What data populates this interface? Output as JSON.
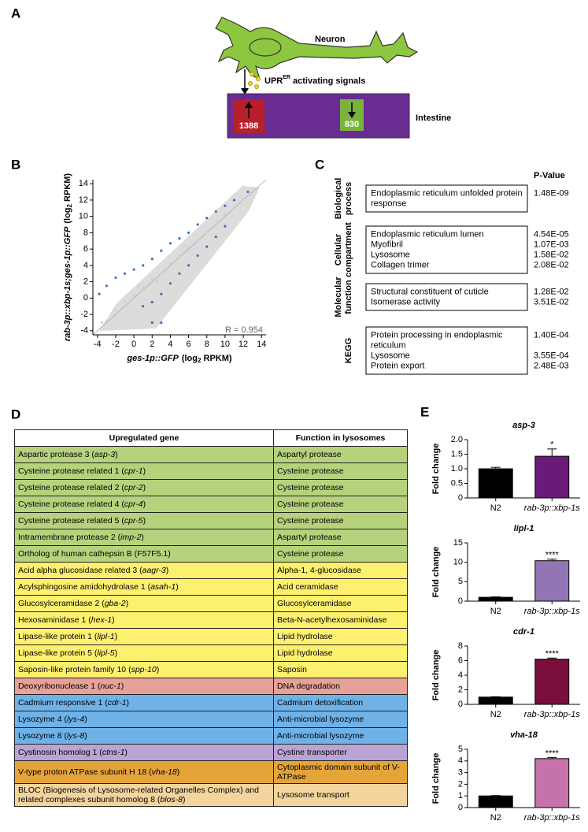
{
  "panel_labels": [
    "A",
    "B",
    "C",
    "D",
    "E"
  ],
  "diagram": {
    "neuron_label": "Neuron",
    "signal_label": [
      "UPR",
      "ER",
      " activating signals"
    ],
    "up_count": 1388,
    "down_count": 830,
    "intestine_label": "Intestine"
  },
  "chart_data": [
    {
      "type": "scatter",
      "xlabel": {
        "gene": "ges-1p::GFP",
        "unit": [
          "(log",
          "2",
          " RPKM)"
        ]
      },
      "ylabel": {
        "gene": "rab-3p::xbp-1s;ges-1p::GFP",
        "unit": [
          "(log",
          "2",
          " RPKM)"
        ]
      },
      "annotation": "R = 0.954",
      "xlim": [
        -4.5,
        14.5
      ],
      "ylim": [
        -4.5,
        14.5
      ],
      "xticks": [
        -4,
        -2,
        0,
        2,
        4,
        6,
        8,
        10,
        12,
        14
      ],
      "yticks": [
        -4,
        -2,
        0,
        2,
        4,
        6,
        8,
        10,
        12,
        14
      ],
      "series": [
        {
          "color": "#cfcfcf",
          "x": [
            -3.5,
            -2,
            -1,
            0,
            1,
            2,
            3,
            4,
            5,
            6,
            7,
            8,
            9,
            10,
            11,
            12,
            -3,
            0.5,
            5.5,
            2.5
          ],
          "values": [
            -3,
            -1.5,
            -0.5,
            0.3,
            1.2,
            2.4,
            3,
            4.2,
            5.1,
            6.2,
            7,
            8.1,
            9,
            10.2,
            11,
            12.1,
            -2.8,
            1.5,
            6.5,
            2
          ]
        },
        {
          "color": "#3b6fc4",
          "x": [
            -3.8,
            -3,
            -2,
            -1,
            0,
            1,
            2,
            3,
            4,
            5,
            6,
            7,
            8,
            9,
            10,
            11,
            12.5,
            1,
            2,
            3,
            4,
            5,
            6,
            7,
            8,
            9,
            10,
            2,
            3
          ],
          "values": [
            0.5,
            1.5,
            2.5,
            3,
            3.5,
            4,
            4.8,
            5.8,
            6.7,
            7.3,
            8,
            9,
            9.8,
            10.6,
            11.3,
            12,
            13,
            -1,
            -0.5,
            0.5,
            1.8,
            3,
            4,
            5.2,
            6.3,
            7.5,
            8.8,
            -3,
            -3
          ]
        }
      ]
    },
    {
      "type": "bar",
      "title": "asp-3",
      "ylabel": "Fold change",
      "categories": [
        "N2",
        "rab-3p::xbp-1s"
      ],
      "values": [
        1.0,
        1.43
      ],
      "errors": [
        0.05,
        0.25
      ],
      "colors": [
        "#000000",
        "#6a1b7a"
      ],
      "significance": [
        null,
        "*"
      ],
      "ylim": [
        0,
        2
      ],
      "yticks": [
        0,
        0.5,
        {
          "value": 1,
          "label": "1.0"
        },
        1.5,
        {
          "value": 2,
          "label": "2.0"
        }
      ]
    },
    {
      "type": "bar",
      "title": "lipl-1",
      "ylabel": "Fold change",
      "categories": [
        "N2",
        "rab-3p::xbp-1s"
      ],
      "values": [
        1.0,
        10.4
      ],
      "errors": [
        0.1,
        0.4
      ],
      "colors": [
        "#000000",
        "#9275b4"
      ],
      "significance": [
        null,
        "****"
      ],
      "ylim": [
        0,
        15
      ],
      "yticks": [
        0,
        5,
        10,
        15
      ]
    },
    {
      "type": "bar",
      "title": "cdr-1",
      "ylabel": "Fold change",
      "categories": [
        "N2",
        "rab-3p::xbp-1s"
      ],
      "values": [
        1.0,
        6.2
      ],
      "errors": [
        0.05,
        0.15
      ],
      "colors": [
        "#000000",
        "#7a0f3c"
      ],
      "significance": [
        null,
        "****"
      ],
      "ylim": [
        0,
        8
      ],
      "yticks": [
        0,
        2,
        4,
        6,
        8
      ]
    },
    {
      "type": "bar",
      "title": "vha-18",
      "ylabel": "Fold change",
      "categories": [
        "N2",
        "rab-3p::xbp-1s"
      ],
      "values": [
        1.0,
        4.2
      ],
      "errors": [
        0.03,
        0.1
      ],
      "colors": [
        "#000000",
        "#c672ab"
      ],
      "significance": [
        null,
        "****"
      ],
      "ylim": [
        0,
        5
      ],
      "yticks": [
        0,
        1,
        2,
        3,
        4,
        5
      ]
    }
  ],
  "go_table": {
    "header": "P-Value",
    "groups": [
      {
        "label": [
          "Biological",
          "process"
        ],
        "terms": [
          {
            "term": [
              "Endoplasmic reticulum unfolded protein",
              "response"
            ],
            "p": "1.48E-09"
          }
        ]
      },
      {
        "label": [
          "Cellular",
          "compartment"
        ],
        "terms": [
          {
            "term": [
              "Endoplasmic reticulum lumen"
            ],
            "p": "4.54E-05"
          },
          {
            "term": [
              "Myofibril"
            ],
            "p": "1.07E-03"
          },
          {
            "term": [
              "Lysosome"
            ],
            "p": "1.58E-02"
          },
          {
            "term": [
              "Collagen trimer"
            ],
            "p": "2.08E-02"
          }
        ]
      },
      {
        "label": [
          "Molecular",
          "function"
        ],
        "terms": [
          {
            "term": [
              "Structural constituent of cuticle"
            ],
            "p": "1.28E-02"
          },
          {
            "term": [
              "Isomerase activity"
            ],
            "p": "3.51E-02"
          }
        ]
      },
      {
        "label": [
          "KEGG"
        ],
        "terms": [
          {
            "term": [
              "Protein processing in endoplasmic",
              "reticulum"
            ],
            "p": "1.40E-04"
          },
          {
            "term": [
              "Lysosome"
            ],
            "p": "3.55E-04"
          },
          {
            "term": [
              "Protein export"
            ],
            "p": "2.48E-03"
          }
        ]
      }
    ]
  },
  "gene_table": {
    "header": [
      "Upregulated gene",
      "Function in lysosomes"
    ],
    "rows": [
      {
        "gene": [
          "Aspartic protease 3 (",
          "asp-3",
          ")"
        ],
        "function": "Aspartyl protease",
        "color": "#b7d27c"
      },
      {
        "gene": [
          "Cysteine protease related 1 (",
          "cpr-1",
          ")"
        ],
        "function": "Cysteine protease",
        "color": "#b7d27c"
      },
      {
        "gene": [
          "Cysteine protease related 2 (",
          "cpr-2",
          ")"
        ],
        "function": "Cysteine protease",
        "color": "#b7d27c"
      },
      {
        "gene": [
          "Cysteine protease related 4 (",
          "cpr-4",
          ")"
        ],
        "function": "Cysteine protease",
        "color": "#b7d27c"
      },
      {
        "gene": [
          "Cysteine protease related 5 (",
          "cpr-5",
          ")"
        ],
        "function": "Cysteine protease",
        "color": "#b7d27c"
      },
      {
        "gene": [
          "Intramembrane protease 2 (",
          "imp-2",
          ")"
        ],
        "function": "Aspartyl protease",
        "color": "#b7d27c"
      },
      {
        "gene": [
          "Ortholog of human cathepsin B (F57F5.1)"
        ],
        "function": "Cysteine protease",
        "color": "#b7d27c"
      },
      {
        "gene": [
          "Acid alpha glucosidase related 3 (",
          "aagr-3",
          ")"
        ],
        "function": "Alpha-1, 4-glucosidase",
        "color": "#fdf06e"
      },
      {
        "gene": [
          "Acylsphingosine amidohydrolase 1 (",
          "asah-1",
          ")"
        ],
        "function": "Acid ceramidase",
        "color": "#fdf06e"
      },
      {
        "gene": [
          "Glucosylceramidase 2 (",
          "gba-2",
          ")"
        ],
        "function": "Glucosylceramidase",
        "color": "#fdf06e"
      },
      {
        "gene": [
          "Hexosaminidase 1 (",
          "hex-1",
          ")"
        ],
        "function": "Beta-N-acetylhexosaminidase",
        "color": "#fdf06e"
      },
      {
        "gene": [
          "Lipase-like protein 1 (",
          "lipl-1",
          ")"
        ],
        "function": "Lipid hydrolase",
        "color": "#fdf06e"
      },
      {
        "gene": [
          "Lipase-like protein 5 (",
          "lipl-5",
          ")"
        ],
        "function": "Lipid hydrolase",
        "color": "#fdf06e"
      },
      {
        "gene": [
          "Saposin-like protein family 10 (",
          "spp-10",
          ")"
        ],
        "function": "Saposin",
        "color": "#fdf06e"
      },
      {
        "gene": [
          "Deoxyribonuclease 1 (",
          "nuc-1",
          ")"
        ],
        "function": "DNA degradation",
        "color": "#e6a298"
      },
      {
        "gene": [
          "Cadmium responsive 1 (",
          "cdr-1",
          ")"
        ],
        "function": "Cadmium detoxification",
        "color": "#6eb2e8"
      },
      {
        "gene": [
          "Lysozyme 4 (",
          "lys-4",
          ")"
        ],
        "function": "Anti-microbial lysozyme",
        "color": "#6eb2e8"
      },
      {
        "gene": [
          "Lysozyme 8 (",
          "lys-8",
          ")"
        ],
        "function": "Anti-microbial lysozyme",
        "color": "#6eb2e8"
      },
      {
        "gene": [
          "Cystinosin homolog 1 (",
          "ctns-1",
          ")"
        ],
        "function": "Cystine transporter",
        "color": "#b9a4d4"
      },
      {
        "gene": [
          "V-type proton ATPase subunit H 18 (",
          "vha-18",
          ")"
        ],
        "function": "Cytoplasmic domain subunit of V-ATPase",
        "color": "#e5a43a"
      },
      {
        "gene": [
          "BLOC (Biogenesis of Lysosome-related Organelles Complex) and related complexes subunit homolog 8 (",
          "blos-8",
          ")"
        ],
        "function": "Lysosome transport",
        "color": "#f3d49d"
      }
    ]
  }
}
